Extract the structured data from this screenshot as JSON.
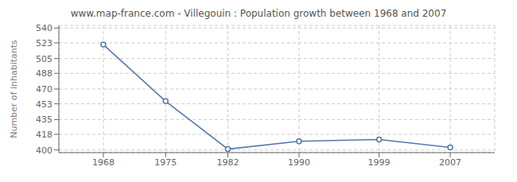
{
  "chart_data": {
    "type": "line",
    "title": "www.map-france.com - Villegouin : Population growth between 1968 and 2007",
    "ylabel": "Number of inhabitants",
    "x": [
      1968,
      1975,
      1982,
      1990,
      1999,
      2007
    ],
    "values": [
      521,
      456,
      401,
      410,
      412,
      403
    ],
    "xlim": [
      1963,
      2012
    ],
    "xticks": [
      1968,
      1975,
      1982,
      1990,
      1999,
      2007
    ],
    "ylim": [
      397,
      543
    ],
    "yticks": [
      400,
      418,
      435,
      453,
      470,
      488,
      505,
      523,
      540
    ],
    "grid": true,
    "color": "#5577aa",
    "marker": "circle"
  }
}
